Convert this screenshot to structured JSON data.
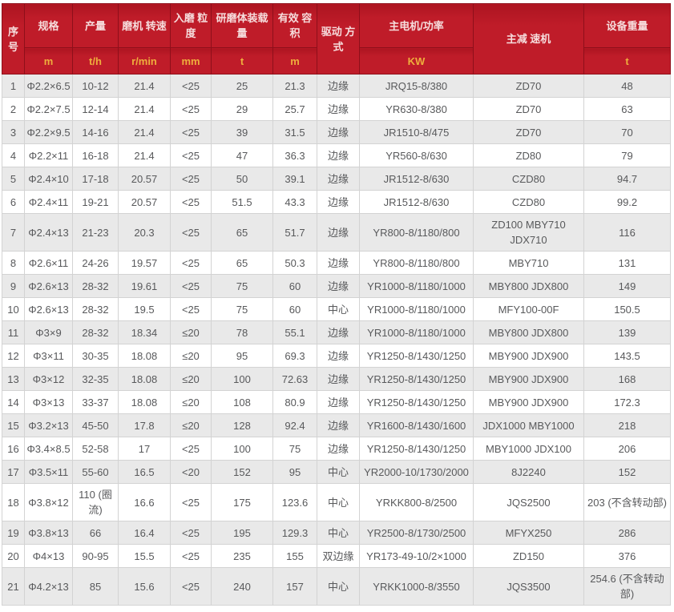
{
  "colors": {
    "header_bg": "#bf1c29",
    "header_bg_dark": "#ad1521",
    "header_border": "#8e0f1a",
    "header_text": "#f6dcdc",
    "unit_text": "#eeae3d",
    "stripe": "#e9e9e9",
    "body_text": "#58595b",
    "body_border": "#d3d3d3"
  },
  "table": {
    "header": {
      "index": "序号",
      "spec": "规格",
      "output": "产量",
      "speed": "磨机 转速",
      "feed_size": "入磨 粒度",
      "media_load": "研磨体装载量",
      "volume": "有效 容积",
      "drive": "驱动 方式",
      "motor": "主电机/功率",
      "reducer": "主减 速机",
      "weight": "设备重量",
      "units": {
        "spec": "m",
        "output": "t/h",
        "speed": "r/min",
        "feed_size": "mm",
        "media_load": "t",
        "volume": "m",
        "motor": "KW",
        "weight": "t"
      }
    },
    "rows": [
      [
        "1",
        "Φ2.2×6.5",
        "10-12",
        "21.4",
        "<25",
        "25",
        "21.3",
        "边缘",
        "JRQ15-8/380",
        "ZD70",
        "48"
      ],
      [
        "2",
        "Φ2.2×7.5",
        "12-14",
        "21.4",
        "<25",
        "29",
        "25.7",
        "边缘",
        "YR630-8/380",
        "ZD70",
        "63"
      ],
      [
        "3",
        "Φ2.2×9.5",
        "14-16",
        "21.4",
        "<25",
        "39",
        "31.5",
        "边缘",
        "JR1510-8/475",
        "ZD70",
        "70"
      ],
      [
        "4",
        "Φ2.2×11",
        "16-18",
        "21.4",
        "<25",
        "47",
        "36.3",
        "边缘",
        "YR560-8/630",
        "ZD80",
        "79"
      ],
      [
        "5",
        "Φ2.4×10",
        "17-18",
        "20.57",
        "<25",
        "50",
        "39.1",
        "边缘",
        "JR1512-8/630",
        "CZD80",
        "94.7"
      ],
      [
        "6",
        "Φ2.4×11",
        "19-21",
        "20.57",
        "<25",
        "51.5",
        "43.3",
        "边缘",
        "JR1512-8/630",
        "CZD80",
        "99.2"
      ],
      [
        "7",
        "Φ2.4×13",
        "21-23",
        "20.3",
        "<25",
        "65",
        "51.7",
        "边缘",
        "YR800-8/1180/800",
        "ZD100 MBY710 JDX710",
        "116"
      ],
      [
        "8",
        "Φ2.6×11",
        "24-26",
        "19.57",
        "<25",
        "65",
        "50.3",
        "边缘",
        "YR800-8/1180/800",
        "MBY710",
        "131"
      ],
      [
        "9",
        "Φ2.6×13",
        "28-32",
        "19.61",
        "<25",
        "75",
        "60",
        "边缘",
        "YR1000-8/1180/1000",
        "MBY800 JDX800",
        "149"
      ],
      [
        "10",
        "Φ2.6×13",
        "28-32",
        "19.5",
        "<25",
        "75",
        "60",
        "中心",
        "YR1000-8/1180/1000",
        "MFY100-00F",
        "150.5"
      ],
      [
        "11",
        "Φ3×9",
        "28-32",
        "18.34",
        "≤20",
        "78",
        "55.1",
        "边缘",
        "YR1000-8/1180/1000",
        "MBY800 JDX800",
        "139"
      ],
      [
        "12",
        "Φ3×11",
        "30-35",
        "18.08",
        "≤20",
        "95",
        "69.3",
        "边缘",
        "YR1250-8/1430/1250",
        "MBY900 JDX900",
        "143.5"
      ],
      [
        "13",
        "Φ3×12",
        "32-35",
        "18.08",
        "≤20",
        "100",
        "72.63",
        "边缘",
        "YR1250-8/1430/1250",
        "MBY900 JDX900",
        "168"
      ],
      [
        "14",
        "Φ3×13",
        "33-37",
        "18.08",
        "≤20",
        "108",
        "80.9",
        "边缘",
        "YR1250-8/1430/1250",
        "MBY900 JDX900",
        "172.3"
      ],
      [
        "15",
        "Φ3.2×13",
        "45-50",
        "17.8",
        "≤20",
        "128",
        "92.4",
        "边缘",
        "YR1600-8/1430/1600",
        "JDX1000 MBY1000",
        "218"
      ],
      [
        "16",
        "Φ3.4×8.5",
        "52-58",
        "17",
        "<25",
        "100",
        "75",
        "边缘",
        "YR1250-8/1430/1250",
        "MBY1000 JDX100",
        "206"
      ],
      [
        "17",
        "Φ3.5×11",
        "55-60",
        "16.5",
        "<20",
        "152",
        "95",
        "中心",
        "YR2000-10/1730/2000",
        "8J2240",
        "152"
      ],
      [
        "18",
        "Φ3.8×12",
        "110 (圈流)",
        "16.6",
        "<25",
        "175",
        "123.6",
        "中心",
        "YRKK800-8/2500",
        "JQS2500",
        "203 (不含转动部)"
      ],
      [
        "19",
        "Φ3.8×13",
        "66",
        "16.4",
        "<25",
        "195",
        "129.3",
        "中心",
        "YR2500-8/1730/2500",
        "MFYX250",
        "286"
      ],
      [
        "20",
        "Φ4×13",
        "90-95",
        "15.5",
        "<25",
        "235",
        "155",
        "双边缘",
        "YR173-49-10/2×1000",
        "ZD150",
        "376"
      ],
      [
        "21",
        "Φ4.2×13",
        "85",
        "15.6",
        "<25",
        "240",
        "157",
        "中心",
        "YRKK1000-8/3550",
        "JQS3500",
        "254.6 (不含转动部)"
      ]
    ]
  }
}
